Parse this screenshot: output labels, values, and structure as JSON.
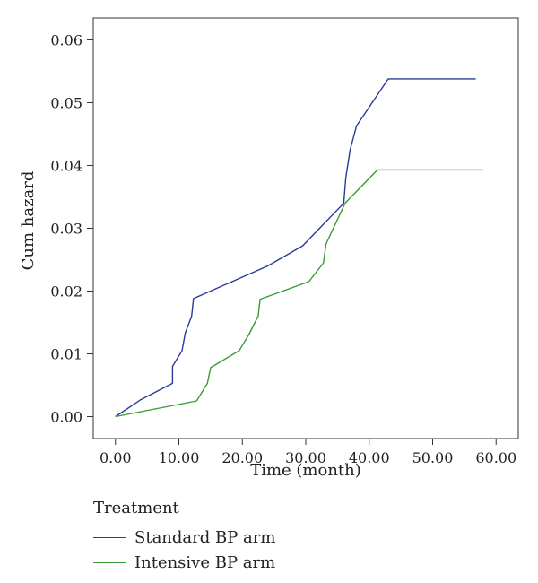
{
  "chart_data": {
    "type": "line",
    "title": "",
    "xlabel": "Time (month)",
    "ylabel": "Cum hazard",
    "xlim": [
      -3.5,
      63.5
    ],
    "ylim": [
      -0.0035,
      0.0635
    ],
    "x_ticks": [
      0,
      10,
      20,
      30,
      40,
      50,
      60
    ],
    "x_tick_labels": [
      "0.00",
      "10.00",
      "20.00",
      "30.00",
      "40.00",
      "50.00",
      "60.00"
    ],
    "y_ticks": [
      0,
      0.01,
      0.02,
      0.03,
      0.04,
      0.05,
      0.06
    ],
    "y_tick_labels": [
      "0.00",
      "0.01",
      "0.02",
      "0.03",
      "0.04",
      "0.05",
      "0.06"
    ],
    "grid": false,
    "legend_title": "Treatment",
    "legend_position": "bottom-left",
    "series": [
      {
        "name": "Standard BP arm",
        "color": "#2b3a9a",
        "points": [
          [
            0,
            0
          ],
          [
            4,
            0.0027
          ],
          [
            9,
            0.0053
          ],
          [
            9,
            0.008
          ],
          [
            10.5,
            0.0105
          ],
          [
            11,
            0.0133
          ],
          [
            12,
            0.016
          ],
          [
            12.3,
            0.0188
          ],
          [
            24,
            0.024
          ],
          [
            29.5,
            0.0272
          ],
          [
            36,
            0.034
          ],
          [
            36.3,
            0.038
          ],
          [
            37,
            0.0425
          ],
          [
            38,
            0.0463
          ],
          [
            43,
            0.0538
          ],
          [
            56.8,
            0.0538
          ]
        ]
      },
      {
        "name": "Intensive BP arm",
        "color": "#3a9a35",
        "points": [
          [
            0,
            0
          ],
          [
            12.8,
            0.0025
          ],
          [
            14.5,
            0.0053
          ],
          [
            15,
            0.0078
          ],
          [
            19.5,
            0.0105
          ],
          [
            21,
            0.013
          ],
          [
            22.5,
            0.016
          ],
          [
            22.8,
            0.0187
          ],
          [
            30.5,
            0.0215
          ],
          [
            32.8,
            0.0245
          ],
          [
            33.2,
            0.0275
          ],
          [
            36.2,
            0.034
          ],
          [
            41.3,
            0.0393
          ],
          [
            58,
            0.0393
          ]
        ]
      }
    ]
  }
}
